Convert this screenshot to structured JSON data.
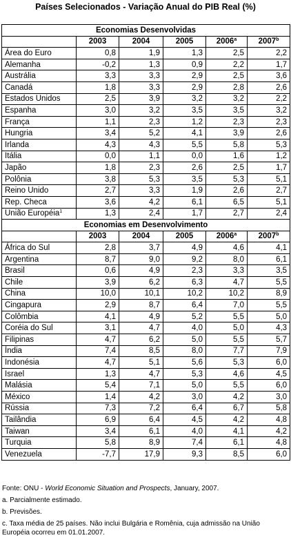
{
  "title": "Países Selecionados - Variação Anual do PIB Real (%)",
  "sections": [
    {
      "title": "Economias Desenvolvidas",
      "header": [
        {
          "text": "2003"
        },
        {
          "text": "2004"
        },
        {
          "text": "2005"
        },
        {
          "text": "2006",
          "sup": "a"
        },
        {
          "text": "2007",
          "sup": "b"
        }
      ],
      "rows": [
        {
          "name": "Área do Euro",
          "values": [
            "0,8",
            "1,9",
            "1,3",
            "2,5",
            "2,2"
          ]
        },
        {
          "name": "Alemanha",
          "values": [
            "-0,2",
            "1,3",
            "0,9",
            "2,2",
            "1,7"
          ]
        },
        {
          "name": "Austrália",
          "values": [
            "3,3",
            "3,3",
            "2,9",
            "2,5",
            "3,6"
          ]
        },
        {
          "name": "Canadá",
          "values": [
            "1,8",
            "3,3",
            "2,9",
            "2,8",
            "2,6"
          ]
        },
        {
          "name": "Estados Unidos",
          "values": [
            "2,5",
            "3,9",
            "3,2",
            "3,2",
            "2,2"
          ]
        },
        {
          "name": "Espanha",
          "values": [
            "3,0",
            "3,2",
            "3,5",
            "3,5",
            "3,2"
          ]
        },
        {
          "name": "França",
          "values": [
            "1,1",
            "2,3",
            "1,2",
            "2,3",
            "2,3"
          ]
        },
        {
          "name": "Hungria",
          "values": [
            "3,4",
            "5,2",
            "4,1",
            "3,9",
            "2,6"
          ]
        },
        {
          "name": "Irlanda",
          "values": [
            "4,3",
            "4,3",
            "5,5",
            "5,8",
            "5,3"
          ]
        },
        {
          "name": "Itália",
          "values": [
            "0,0",
            "1,1",
            "0,0",
            "1,6",
            "1,2"
          ]
        },
        {
          "name": "Japão",
          "values": [
            "1,8",
            "2,3",
            "2,6",
            "2,5",
            "1,7"
          ]
        },
        {
          "name": "Polônia",
          "values": [
            "3,8",
            "5,3",
            "3,5",
            "5,3",
            "5,1"
          ]
        },
        {
          "name": "Reino Unido",
          "values": [
            "2,7",
            "3,3",
            "1,9",
            "2,6",
            "2,7"
          ]
        },
        {
          "name": "Rep. Checa",
          "values": [
            "3,6",
            "4,2",
            "6,1",
            "6,5",
            "5,1"
          ]
        },
        {
          "name": "União Européia",
          "sup": "1",
          "values": [
            "1,3",
            "2,4",
            "1,7",
            "2,7",
            "2,4"
          ]
        }
      ]
    },
    {
      "title": "Economias em Desenvolvimento",
      "header": [
        {
          "text": "2003"
        },
        {
          "text": "2004"
        },
        {
          "text": "2005"
        },
        {
          "text": "2006",
          "sup": "a"
        },
        {
          "text": "2007",
          "sup": "b"
        }
      ],
      "rows": [
        {
          "name": "África do Sul",
          "values": [
            "2,8",
            "3,7",
            "4,9",
            "4,6",
            "4,1"
          ]
        },
        {
          "name": "Argentina",
          "values": [
            "8,7",
            "9,0",
            "9,2",
            "8,0",
            "6,1"
          ]
        },
        {
          "name": "Brasil",
          "values": [
            "0,6",
            "4,9",
            "2,3",
            "3,3",
            "3,5"
          ]
        },
        {
          "name": "Chile",
          "values": [
            "3,9",
            "6,2",
            "6,3",
            "4,7",
            "5,5"
          ]
        },
        {
          "name": "China",
          "values": [
            "10,0",
            "10,1",
            "10,2",
            "10,2",
            "8,9"
          ]
        },
        {
          "name": "Cingapura",
          "values": [
            "2,9",
            "8,7",
            "6,4",
            "7,0",
            "5,5"
          ]
        },
        {
          "name": "Colômbia",
          "values": [
            "4,1",
            "4,9",
            "5,2",
            "5,5",
            "5,0"
          ]
        },
        {
          "name": "Coréia do Sul",
          "values": [
            "3,1",
            "4,7",
            "4,0",
            "5,0",
            "4,3"
          ]
        },
        {
          "name": "Filipinas",
          "values": [
            "4,7",
            "6,2",
            "5,0",
            "5,5",
            "5,7"
          ]
        },
        {
          "name": "Índia",
          "values": [
            "7,4",
            "8,5",
            "8,0",
            "7,7",
            "7,9"
          ]
        },
        {
          "name": "Indonésia",
          "values": [
            "4,7",
            "5,1",
            "5,6",
            "5,3",
            "6,0"
          ]
        },
        {
          "name": "Israel",
          "values": [
            "1,3",
            "4,7",
            "5,3",
            "4,6",
            "4,5"
          ]
        },
        {
          "name": "Malásia",
          "values": [
            "5,4",
            "7,1",
            "5,0",
            "5,5",
            "6,0"
          ]
        },
        {
          "name": "México",
          "values": [
            "1,4",
            "4,2",
            "3,0",
            "4,2",
            "3,0"
          ]
        },
        {
          "name": "Rússia",
          "values": [
            "7,3",
            "7,2",
            "6,4",
            "6,7",
            "5,8"
          ]
        },
        {
          "name": "Tailândia",
          "values": [
            "6,9",
            "6,4",
            "4,5",
            "4,2",
            "4,8"
          ]
        },
        {
          "name": "Taiwan",
          "values": [
            "3,4",
            "6,1",
            "4,0",
            "4,1",
            "4,2"
          ]
        },
        {
          "name": "Turquia",
          "values": [
            "5,8",
            "8,9",
            "7,4",
            "6,1",
            "4,8"
          ]
        },
        {
          "name": "Venezuela",
          "values": [
            "-7,7",
            "17,9",
            "9,3",
            "8,5",
            "6,0"
          ]
        }
      ]
    }
  ],
  "footer": {
    "source_prefix": "Fonte: ONU - ",
    "source_title": "World Economic Situation and Prospects",
    "source_suffix": ", January, 2007.",
    "notes": [
      "a. Parcialmente estimado.",
      "b. Previsões.",
      "c. Taxa média de 25 países. Não inclui Bulgária e Romênia, cuja admissão na União Européia ocorreu em 01.01.2007."
    ]
  }
}
